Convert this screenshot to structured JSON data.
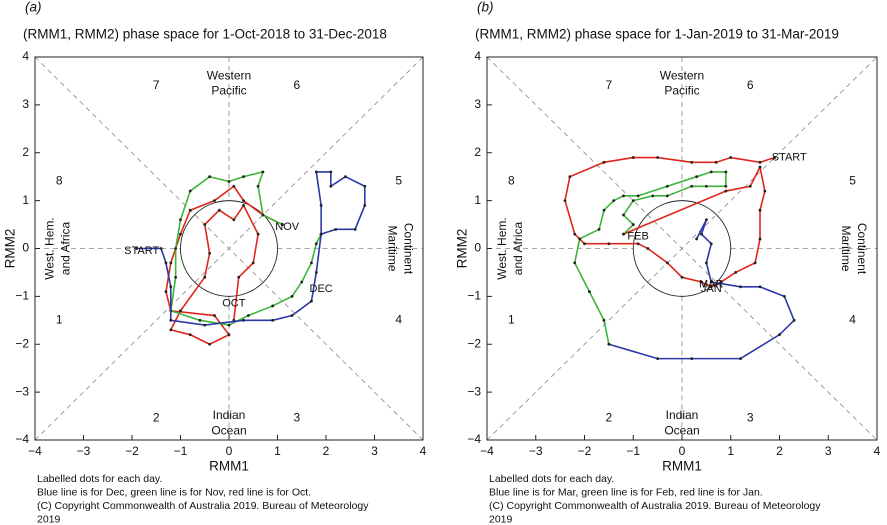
{
  "chart_data": [
    {
      "type": "line",
      "panel_label": "(a)",
      "title": "(RMM1, RMM2) phase space for 1-Oct-2018 to 31-Dec-2018",
      "xlabel": "RMM1",
      "ylabel": "RMM2",
      "xlim": [
        -4,
        4
      ],
      "ylim": [
        -4,
        4
      ],
      "xticks": [
        {
          "value": -4,
          "label": "−4"
        },
        {
          "value": -3,
          "label": "−3"
        },
        {
          "value": -2,
          "label": "−2"
        },
        {
          "value": -1,
          "label": "−1"
        },
        0,
        1,
        2,
        3,
        4
      ],
      "yticks": [
        {
          "value": -4,
          "label": "−4"
        },
        {
          "value": -3,
          "label": "−3"
        },
        {
          "value": -2,
          "label": "−2"
        },
        {
          "value": -1,
          "label": "−1"
        },
        0,
        1,
        2,
        3,
        4
      ],
      "phases": [
        "1",
        "2",
        "3",
        "4",
        "5",
        "6",
        "7",
        "8"
      ],
      "regions": [
        [
          "Western",
          "Pacific"
        ],
        [
          "Maritime",
          "Continent"
        ],
        [
          "Indian",
          "Ocean"
        ],
        [
          "West. Hem.",
          "and Africa"
        ]
      ],
      "series": [
        {
          "name": "Oct",
          "color": "#e0251b",
          "x": [
            0.1,
            0.2,
            0.5,
            0.6,
            0.3,
            0.1,
            -0.2,
            -0.5,
            -0.4,
            -0.5,
            -1.0,
            -1.2,
            -0.8,
            -0.4,
            0.0,
            -0.3,
            -1.2,
            -1.3,
            -1.2,
            -1.0,
            -0.8,
            -0.3,
            0.1,
            0.3,
            0.7,
            1.1
          ],
          "values": [
            -1.5,
            -0.6,
            -0.3,
            0.3,
            0.9,
            0.6,
            0.8,
            0.5,
            -0.1,
            -0.6,
            -1.3,
            -1.7,
            -1.8,
            -2.0,
            -1.8,
            -1.4,
            -1.3,
            -0.9,
            -0.3,
            0.3,
            0.8,
            1.0,
            1.3,
            1.0,
            0.7,
            0.5
          ]
        },
        {
          "name": "Nov",
          "color": "#3db53a",
          "x": [
            1.1,
            0.7,
            0.6,
            0.7,
            0.3,
            0.0,
            -0.4,
            -0.8,
            -1.0,
            -1.1,
            -1.1,
            -1.2,
            -0.6,
            0.0,
            0.4,
            0.9,
            1.3,
            1.5,
            1.7,
            1.8,
            1.9
          ],
          "values": [
            0.5,
            0.7,
            1.3,
            1.6,
            1.5,
            1.4,
            1.5,
            1.2,
            0.6,
            0.0,
            -0.6,
            -1.3,
            -1.5,
            -1.6,
            -1.4,
            -1.2,
            -1.0,
            -0.7,
            -0.3,
            0.1,
            0.3
          ]
        },
        {
          "name": "Dec",
          "color": "#2b3aa8",
          "x": [
            1.9,
            2.2,
            2.6,
            2.8,
            2.8,
            2.4,
            2.1,
            2.1,
            1.8,
            1.9,
            1.9,
            1.8,
            1.7,
            1.3,
            0.9,
            0.3,
            -0.5,
            -1.2,
            -1.2,
            -1.3,
            -1.4,
            -1.9
          ],
          "values": [
            0.3,
            0.4,
            0.4,
            0.9,
            1.3,
            1.5,
            1.3,
            1.6,
            1.6,
            0.9,
            0.3,
            -0.5,
            -1.1,
            -1.4,
            -1.5,
            -1.5,
            -1.6,
            -1.5,
            -0.8,
            -0.3,
            0.0,
            0.0
          ]
        }
      ],
      "annotations": [
        {
          "text": "START",
          "x": -1.8,
          "y": -0.05,
          "color": "#2b3aa8"
        },
        {
          "text": "OCT",
          "x": 0.1,
          "y": -1.15,
          "color": "#e0251b"
        },
        {
          "text": "NOV",
          "x": 1.2,
          "y": 0.45,
          "color": "#3db53a"
        },
        {
          "text": "DEC",
          "x": 1.9,
          "y": -0.85,
          "color": "#2b3aa8"
        }
      ],
      "notes": [
        "Labelled dots for each day.",
        "Blue line is for Dec, green line is for Nov, red line is for Oct.",
        "(C) Copyright Commonwealth of Australia 2019. Bureau of Meteorology",
        "2019"
      ]
    },
    {
      "type": "line",
      "panel_label": "(b)",
      "title": "(RMM1, RMM2) phase space for 1-Jan-2019 to 31-Mar-2019",
      "xlabel": "RMM1",
      "ylabel": "RMM2",
      "xlim": [
        -4,
        4
      ],
      "ylim": [
        -4,
        4
      ],
      "xticks": [
        {
          "value": -4,
          "label": "−4"
        },
        {
          "value": -3,
          "label": "−3"
        },
        {
          "value": -2,
          "label": "−2"
        },
        {
          "value": -1,
          "label": "−1"
        },
        0,
        1,
        2,
        3,
        4
      ],
      "yticks": [
        {
          "value": -4,
          "label": "−4"
        },
        {
          "value": -3,
          "label": "−3"
        },
        {
          "value": -2,
          "label": "−2"
        },
        {
          "value": -1,
          "label": "−1"
        },
        0,
        1,
        2,
        3,
        4
      ],
      "phases": [
        "1",
        "2",
        "3",
        "4",
        "5",
        "6",
        "7",
        "8"
      ],
      "regions": [
        [
          "Western",
          "Pacific"
        ],
        [
          "Maritime",
          "Continent"
        ],
        [
          "Indian",
          "Ocean"
        ],
        [
          "West. Hem.",
          "and Africa"
        ]
      ],
      "series": [
        {
          "name": "Jan",
          "color": "#e0251b",
          "x": [
            1.9,
            1.6,
            1.0,
            0.7,
            0.2,
            -0.5,
            -1.0,
            -1.6,
            -2.3,
            -2.4,
            -2.2,
            -2.0,
            -1.5,
            -0.9,
            -0.7,
            -0.3,
            0.0,
            0.4,
            0.6,
            0.8,
            1.1,
            1.5,
            1.6,
            1.6,
            1.7,
            1.6,
            1.4,
            0.9,
            -1.2
          ],
          "values": [
            1.9,
            1.8,
            1.9,
            1.8,
            1.8,
            1.9,
            1.9,
            1.8,
            1.5,
            1.0,
            0.3,
            0.1,
            0.1,
            0.1,
            0.0,
            -0.3,
            -0.6,
            -0.7,
            -0.8,
            -0.7,
            -0.5,
            -0.3,
            0.2,
            0.8,
            1.2,
            1.7,
            1.3,
            1.2,
            0.3
          ]
        },
        {
          "name": "Feb",
          "color": "#3db53a",
          "x": [
            -1.2,
            -1.0,
            -1.2,
            -1.0,
            -0.6,
            -0.3,
            0.2,
            0.5,
            0.9,
            0.9,
            0.6,
            0.3,
            -0.3,
            -0.9,
            -1.2,
            -1.4,
            -1.6,
            -1.7,
            -2.1,
            -2.2,
            -1.9,
            -1.6,
            -1.5
          ],
          "values": [
            0.3,
            0.5,
            0.7,
            1.0,
            1.1,
            1.1,
            1.3,
            1.3,
            1.3,
            1.6,
            1.6,
            1.5,
            1.3,
            1.1,
            1.1,
            1.0,
            0.8,
            0.4,
            0.2,
            -0.3,
            -0.9,
            -1.5,
            -2.0
          ]
        },
        {
          "name": "Mar",
          "color": "#2b3aa8",
          "x": [
            -1.5,
            -0.5,
            0.2,
            1.2,
            2.0,
            2.3,
            2.1,
            1.6,
            1.2,
            0.6,
            0.5,
            0.6,
            0.4,
            0.5,
            0.3
          ],
          "values": [
            -2.0,
            -2.3,
            -2.3,
            -2.3,
            -1.8,
            -1.5,
            -1.0,
            -0.8,
            -0.8,
            -0.7,
            -0.3,
            0.1,
            0.3,
            0.6,
            0.2
          ]
        }
      ],
      "annotations": [
        {
          "text": "START",
          "x": 2.2,
          "y": 1.9,
          "color": "#111"
        },
        {
          "text": "FEB",
          "x": -0.9,
          "y": 0.25,
          "color": "#3db53a"
        },
        {
          "text": "MAR",
          "x": 0.6,
          "y": -0.75,
          "color": "#2b3aa8"
        },
        {
          "text": "JAN",
          "x": 0.6,
          "y": -0.85,
          "color": "#e0251b"
        }
      ],
      "notes": [
        "Labelled dots for each day.",
        "Blue line is for Mar, green line is for Feb, red line is for Jan.",
        "(C) Copyright Commonwealth of Australia 2019. Bureau of Meteorology",
        "2019"
      ]
    }
  ]
}
